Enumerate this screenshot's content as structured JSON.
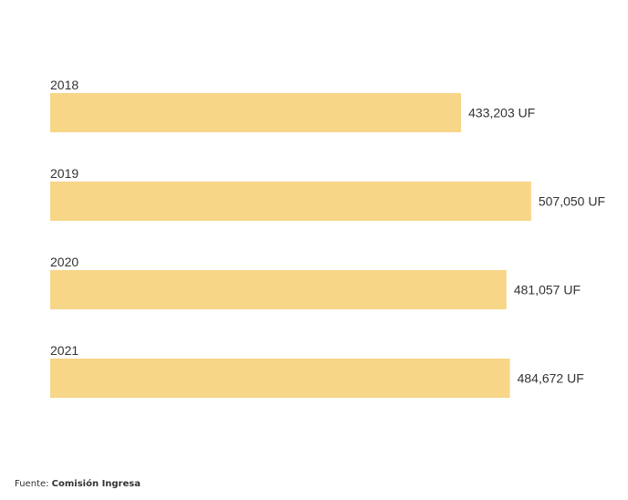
{
  "chart_data": {
    "type": "bar",
    "orientation": "horizontal",
    "categories": [
      "2018",
      "2019",
      "2020",
      "2021"
    ],
    "values": [
      433203,
      507050,
      481057,
      484672
    ],
    "value_labels": [
      "433,203 UF",
      "507,050 UF",
      "481,057 UF",
      "484,672 UF"
    ],
    "unit": "UF",
    "title": "",
    "xlabel": "",
    "ylabel": "",
    "xlim": [
      0,
      512000
    ],
    "grid": false,
    "legend": "none",
    "bar_color": "#f7d688",
    "text_color": "#333333"
  },
  "source": {
    "prefix": "Fuente: ",
    "name": "Comisión Ingresa"
  }
}
